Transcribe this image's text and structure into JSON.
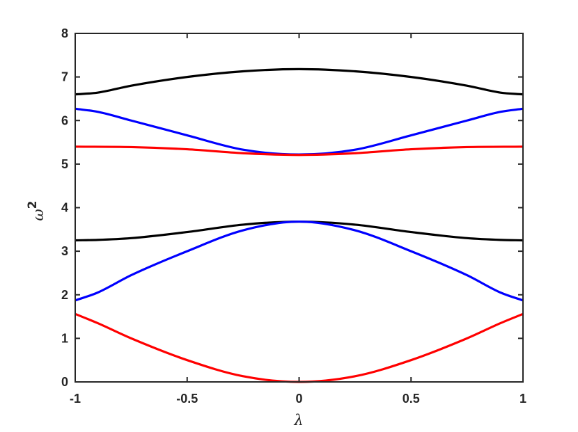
{
  "chart_data": {
    "type": "line",
    "xlabel": "λ",
    "ylabel": "ω",
    "ylabel_superscript": "2",
    "xlim": [
      -1,
      1
    ],
    "ylim": [
      0,
      8
    ],
    "xticks": [
      -1,
      -0.5,
      0,
      0.5,
      1
    ],
    "xtick_labels": [
      "-1",
      "-0.5",
      "0",
      "0.5",
      "1"
    ],
    "yticks": [
      0,
      1,
      2,
      3,
      4,
      5,
      6,
      7,
      8
    ],
    "ytick_labels": [
      "0",
      "1",
      "2",
      "3",
      "4",
      "5",
      "6",
      "7",
      "8"
    ],
    "grid": false,
    "box": true,
    "series": [
      {
        "color": "#000000",
        "x": [
          -1,
          -0.9,
          -0.75,
          -0.5,
          -0.25,
          0,
          0.25,
          0.5,
          0.75,
          0.9,
          1
        ],
        "values": [
          6.6,
          6.64,
          6.8,
          7.0,
          7.13,
          7.18,
          7.13,
          7.0,
          6.8,
          6.64,
          6.6
        ]
      },
      {
        "color": "#0000ff",
        "x": [
          -1,
          -0.9,
          -0.75,
          -0.5,
          -0.25,
          0,
          0.25,
          0.5,
          0.75,
          0.9,
          1
        ],
        "values": [
          6.27,
          6.2,
          6.0,
          5.66,
          5.33,
          5.22,
          5.33,
          5.66,
          6.0,
          6.2,
          6.27
        ]
      },
      {
        "color": "#ff0000",
        "x": [
          -1,
          -0.75,
          -0.5,
          -0.25,
          0,
          0.25,
          0.5,
          0.75,
          1
        ],
        "values": [
          5.4,
          5.39,
          5.34,
          5.25,
          5.21,
          5.25,
          5.34,
          5.39,
          5.4
        ]
      },
      {
        "color": "#000000",
        "x": [
          -1,
          -0.9,
          -0.75,
          -0.5,
          -0.25,
          0,
          0.25,
          0.5,
          0.75,
          0.9,
          1
        ],
        "values": [
          3.25,
          3.26,
          3.3,
          3.44,
          3.61,
          3.68,
          3.61,
          3.44,
          3.3,
          3.26,
          3.25
        ]
      },
      {
        "color": "#0000ff",
        "x": [
          -1,
          -0.9,
          -0.75,
          -0.5,
          -0.25,
          0,
          0.25,
          0.5,
          0.75,
          0.9,
          1
        ],
        "values": [
          1.87,
          2.05,
          2.45,
          3.0,
          3.48,
          3.68,
          3.48,
          3.0,
          2.45,
          2.05,
          1.87
        ]
      },
      {
        "color": "#ff0000",
        "x": [
          -1,
          -0.9,
          -0.75,
          -0.5,
          -0.25,
          0,
          0.25,
          0.5,
          0.75,
          0.9,
          1
        ],
        "values": [
          1.56,
          1.35,
          1.0,
          0.5,
          0.13,
          0.0,
          0.13,
          0.5,
          1.0,
          1.35,
          1.56
        ]
      }
    ]
  }
}
